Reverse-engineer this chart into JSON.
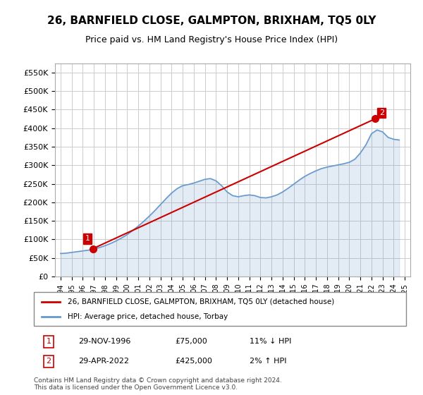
{
  "title": "26, BARNFIELD CLOSE, GALMPTON, BRIXHAM, TQ5 0LY",
  "subtitle": "Price paid vs. HM Land Registry's House Price Index (HPI)",
  "legend_line1": "26, BARNFIELD CLOSE, GALMPTON, BRIXHAM, TQ5 0LY (detached house)",
  "legend_line2": "HPI: Average price, detached house, Torbay",
  "transaction1_label": "1",
  "transaction1_date": "29-NOV-1996",
  "transaction1_price": "£75,000",
  "transaction1_hpi": "11% ↓ HPI",
  "transaction2_label": "2",
  "transaction2_date": "29-APR-2022",
  "transaction2_price": "£425,000",
  "transaction2_hpi": "2% ↑ HPI",
  "footnote": "Contains HM Land Registry data © Crown copyright and database right 2024.\nThis data is licensed under the Open Government Licence v3.0.",
  "hpi_color": "#6699cc",
  "price_color": "#cc0000",
  "marker_color": "#cc0000",
  "background_color": "#ffffff",
  "grid_color": "#cccccc",
  "ylim": [
    0,
    575000
  ],
  "yticks": [
    0,
    50000,
    100000,
    150000,
    200000,
    250000,
    300000,
    350000,
    400000,
    450000,
    500000,
    550000
  ],
  "xlabel_start_year": 1994,
  "xlabel_end_year": 2025,
  "transaction1_year": 1996.91,
  "transaction1_value": 75000,
  "transaction2_year": 2022.33,
  "transaction2_value": 425000,
  "hpi_years": [
    1994,
    1994.5,
    1995,
    1995.5,
    1996,
    1996.5,
    1997,
    1997.5,
    1998,
    1998.5,
    1999,
    1999.5,
    2000,
    2000.5,
    2001,
    2001.5,
    2002,
    2002.5,
    2003,
    2003.5,
    2004,
    2004.5,
    2005,
    2005.5,
    2006,
    2006.5,
    2007,
    2007.5,
    2008,
    2008.5,
    2009,
    2009.5,
    2010,
    2010.5,
    2011,
    2011.5,
    2012,
    2012.5,
    2013,
    2013.5,
    2014,
    2014.5,
    2015,
    2015.5,
    2016,
    2016.5,
    2017,
    2017.5,
    2018,
    2018.5,
    2019,
    2019.5,
    2020,
    2020.5,
    2021,
    2021.5,
    2022,
    2022.5,
    2023,
    2023.5,
    2024,
    2024.5
  ],
  "hpi_values": [
    62000,
    63000,
    65000,
    67000,
    69000,
    71000,
    74000,
    78000,
    83000,
    89000,
    96000,
    104000,
    113000,
    124000,
    136000,
    149000,
    163000,
    178000,
    194000,
    210000,
    225000,
    237000,
    245000,
    248000,
    252000,
    257000,
    262000,
    264000,
    258000,
    245000,
    228000,
    218000,
    215000,
    218000,
    220000,
    218000,
    213000,
    212000,
    215000,
    220000,
    228000,
    238000,
    249000,
    260000,
    270000,
    278000,
    285000,
    291000,
    295000,
    298000,
    301000,
    304000,
    308000,
    316000,
    333000,
    355000,
    385000,
    395000,
    390000,
    375000,
    370000,
    368000
  ],
  "hpi_fill_alpha": 0.18
}
